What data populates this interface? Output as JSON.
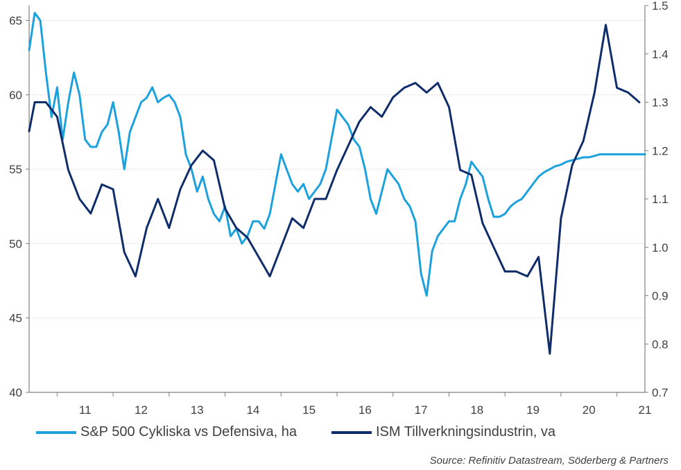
{
  "chart_data": {
    "type": "line",
    "x_tick_labels": [
      "11",
      "12",
      "13",
      "14",
      "15",
      "16",
      "17",
      "18",
      "19",
      "20",
      "21"
    ],
    "y_left": {
      "ticks": [
        "40",
        "45",
        "50",
        "55",
        "60",
        "65"
      ],
      "lim": [
        40,
        66
      ]
    },
    "y_right": {
      "ticks": [
        "0.7",
        "0.8",
        "0.9",
        "1.0",
        "1.1",
        "1.2",
        "1.3",
        "1.4",
        "1.5"
      ],
      "lim": [
        0.7,
        1.5
      ]
    },
    "grid": "horizontal",
    "legend_position": "bottom",
    "colors": {
      "cyclical": "#1ba1dd",
      "ism": "#0f2d6b",
      "axis": "#7f7f7f",
      "grid": "#d9d9d9",
      "text": "#404040"
    },
    "series": [
      {
        "name": "S&P 500 Cykliska vs Defensiva, ha",
        "axis": "left",
        "x": [
          2010.5,
          2010.6,
          2010.7,
          2010.8,
          2010.9,
          2011.0,
          2011.1,
          2011.2,
          2011.3,
          2011.4,
          2011.5,
          2011.6,
          2011.7,
          2011.8,
          2011.9,
          2012.0,
          2012.1,
          2012.2,
          2012.3,
          2012.4,
          2012.5,
          2012.6,
          2012.7,
          2012.8,
          2012.9,
          2013.0,
          2013.1,
          2013.2,
          2013.3,
          2013.4,
          2013.5,
          2013.6,
          2013.7,
          2013.8,
          2013.9,
          2014.0,
          2014.1,
          2014.2,
          2014.3,
          2014.4,
          2014.5,
          2014.6,
          2014.7,
          2014.8,
          2014.9,
          2015.0,
          2015.1,
          2015.2,
          2015.3,
          2015.4,
          2015.5,
          2015.6,
          2015.7,
          2015.8,
          2015.9,
          2016.0,
          2016.1,
          2016.2,
          2016.3,
          2016.4,
          2016.5,
          2016.6,
          2016.7,
          2016.8,
          2016.9,
          2017.0,
          2017.1,
          2017.2,
          2017.3,
          2017.4,
          2017.5,
          2017.6,
          2017.7,
          2017.8,
          2017.9,
          2018.0,
          2018.1,
          2018.2,
          2018.3,
          2018.4,
          2018.5,
          2018.6,
          2018.7,
          2018.8,
          2018.9,
          2019.0,
          2019.1,
          2019.2,
          2019.3,
          2019.4,
          2019.5,
          2019.6,
          2019.7,
          2019.8,
          2019.9,
          2020.0,
          2020.1,
          2020.2,
          2020.3,
          2020.4,
          2020.5,
          2020.6,
          2020.7,
          2020.8,
          2020.9,
          2021.0,
          2021.1,
          2021.2,
          2021.3,
          2021.4,
          2021.5
        ],
        "values": [
          63.0,
          65.5,
          65.0,
          61.5,
          58.5,
          60.5,
          57.0,
          59.5,
          61.5,
          60.0,
          57.0,
          56.5,
          56.5,
          57.5,
          58.0,
          59.5,
          57.5,
          55.0,
          57.5,
          58.5,
          59.5,
          59.8,
          60.5,
          59.5,
          59.8,
          60.0,
          59.5,
          58.5,
          56.0,
          55.0,
          53.5,
          54.5,
          53.0,
          52.0,
          51.5,
          52.5,
          50.5,
          51.0,
          50.0,
          50.5,
          51.5,
          51.5,
          51.0,
          52.0,
          54.0,
          56.0,
          55.0,
          54.0,
          53.5,
          54.0,
          53.0,
          53.5,
          54.0,
          55.0,
          57.0,
          59.0,
          58.5,
          58.0,
          57.0,
          56.5,
          55.0,
          53.0,
          52.0,
          53.5,
          55.0,
          54.5,
          54.0,
          53.0,
          52.5,
          51.5,
          48.0,
          46.5,
          49.5,
          50.5,
          51.0,
          51.5,
          51.5,
          53.0,
          54.0,
          55.5,
          55.0,
          54.5,
          53.0,
          51.8,
          51.8,
          52.0,
          52.5,
          52.8,
          53.0,
          53.5,
          54.0,
          54.5,
          54.8,
          55.0,
          55.2,
          55.3,
          55.5,
          55.6,
          55.7,
          55.8,
          55.8,
          55.9,
          56.0,
          56.0,
          56.0,
          56.0,
          56.0,
          56.0,
          56.0,
          56.0,
          56.0
        ]
      },
      {
        "name": "ISM Tillverkningsindustrin, va",
        "axis": "right",
        "x": [
          2010.5,
          2010.6,
          2010.8,
          2011.0,
          2011.2,
          2011.4,
          2011.6,
          2011.8,
          2012.0,
          2012.2,
          2012.4,
          2012.6,
          2012.8,
          2013.0,
          2013.2,
          2013.4,
          2013.6,
          2013.8,
          2014.0,
          2014.2,
          2014.4,
          2014.6,
          2014.8,
          2015.0,
          2015.2,
          2015.4,
          2015.6,
          2015.8,
          2016.0,
          2016.2,
          2016.4,
          2016.6,
          2016.8,
          2017.0,
          2017.2,
          2017.4,
          2017.6,
          2017.8,
          2018.0,
          2018.2,
          2018.4,
          2018.6,
          2018.8,
          2019.0,
          2019.2,
          2019.4,
          2019.6,
          2019.8,
          2020.0,
          2020.2,
          2020.4,
          2020.6,
          2020.8,
          2021.0,
          2021.2,
          2021.4
        ],
        "values": [
          1.24,
          1.3,
          1.3,
          1.27,
          1.16,
          1.1,
          1.07,
          1.13,
          1.12,
          0.99,
          0.94,
          1.04,
          1.1,
          1.04,
          1.12,
          1.17,
          1.2,
          1.18,
          1.08,
          1.04,
          1.02,
          0.98,
          0.94,
          1.0,
          1.06,
          1.04,
          1.1,
          1.1,
          1.16,
          1.21,
          1.26,
          1.29,
          1.27,
          1.31,
          1.33,
          1.34,
          1.32,
          1.34,
          1.29,
          1.16,
          1.15,
          1.05,
          1.0,
          0.95,
          0.95,
          0.94,
          0.98,
          0.78,
          1.06,
          1.17,
          1.22,
          1.32,
          1.46,
          1.33,
          1.32,
          1.3
        ]
      }
    ],
    "source": "Source: Refinitiv Datastream, Söderberg & Partners"
  }
}
